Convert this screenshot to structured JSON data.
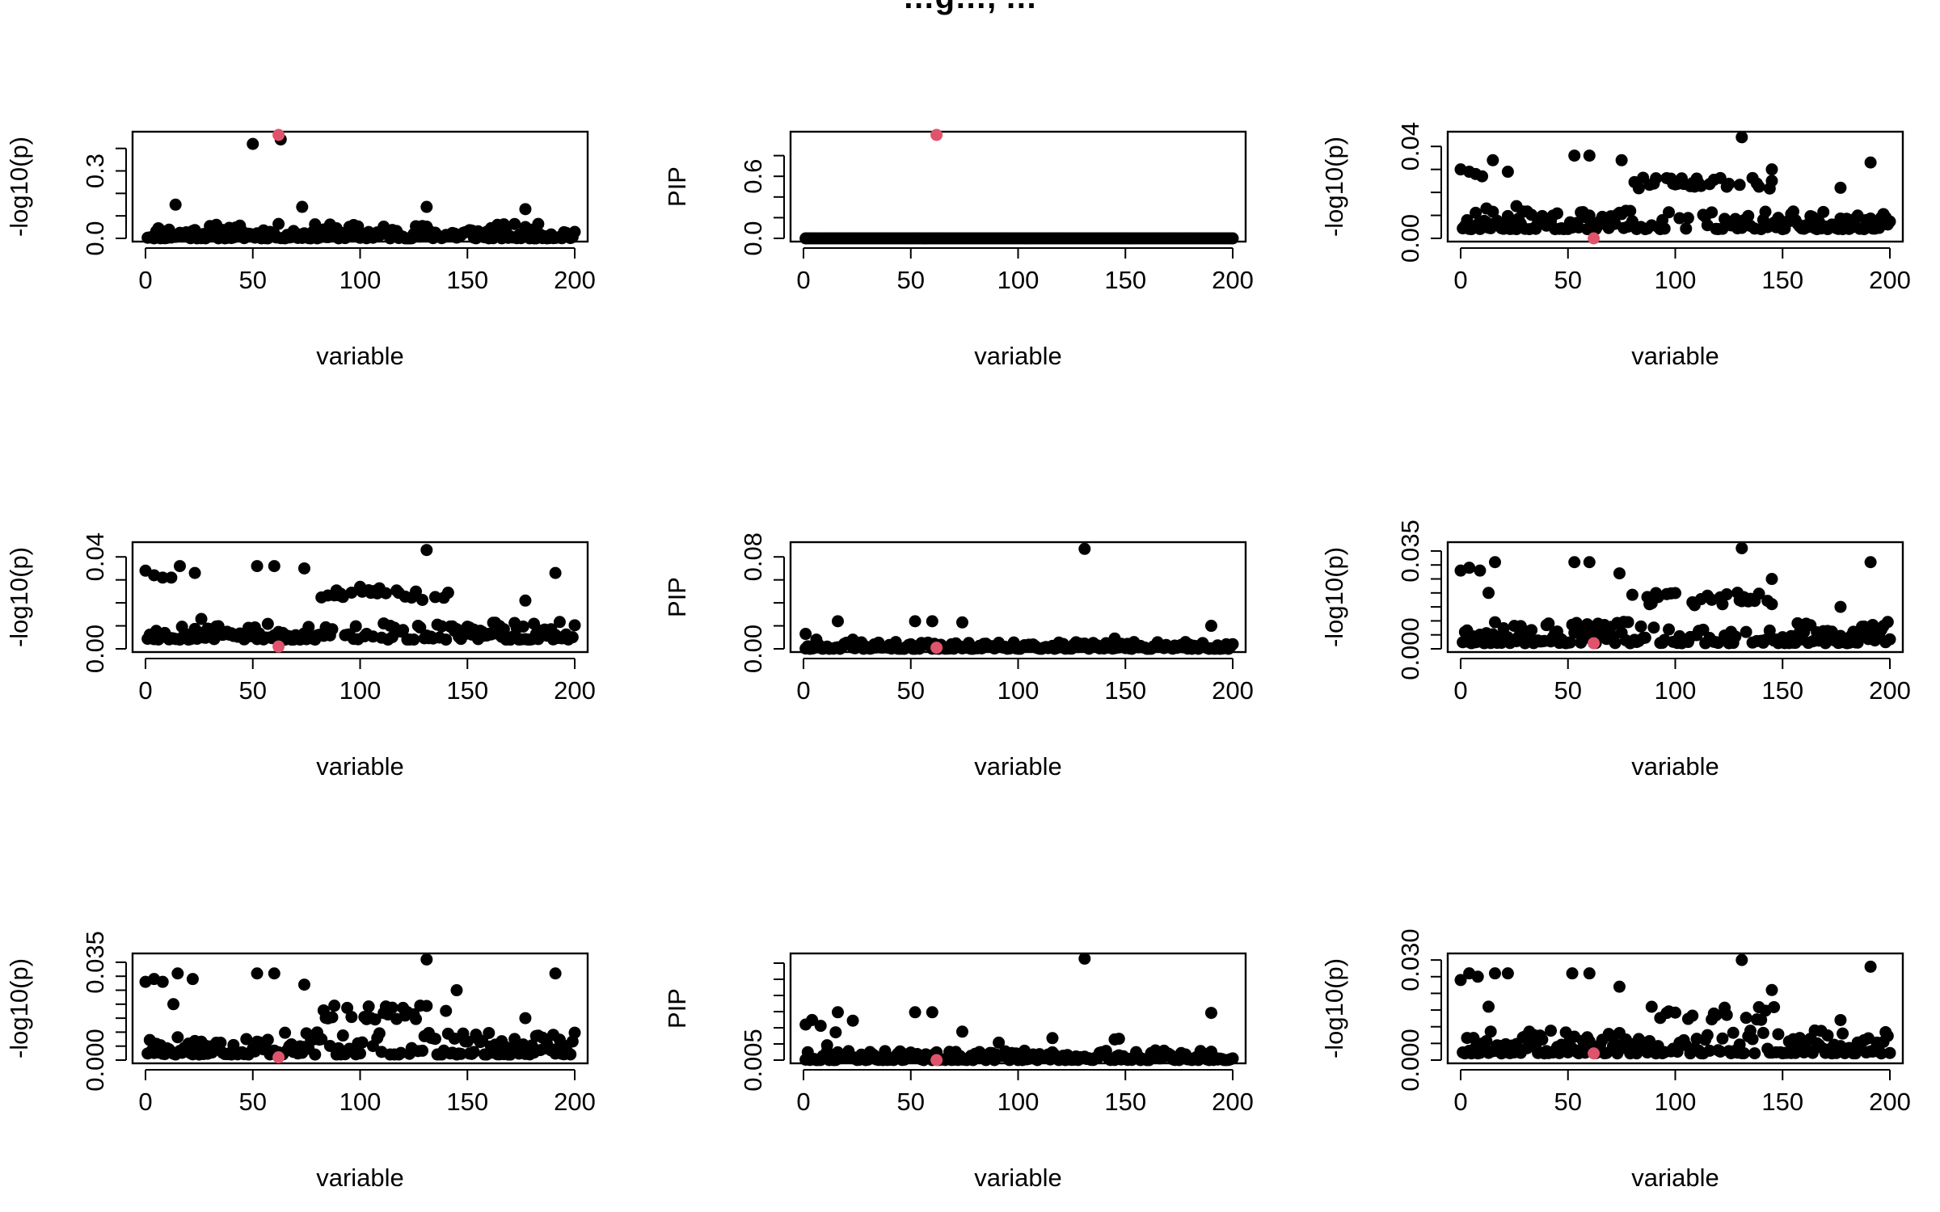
{
  "figure": {
    "title": "…g…, …"
  },
  "chart_data": [
    {
      "type": "scatter",
      "panel": 1,
      "xlabel": "variable",
      "ylabel": "-log10(p)",
      "xlim": [
        0,
        200
      ],
      "ylim": [
        0,
        0.46
      ],
      "xticks": [
        {
          "value": 0,
          "label": "0"
        },
        {
          "value": 50,
          "label": "50"
        },
        {
          "value": 100,
          "label": "100"
        },
        {
          "value": 150,
          "label": "150"
        },
        {
          "value": 200,
          "label": "200"
        }
      ],
      "yticks": [
        {
          "value": 0,
          "label": "0.0"
        },
        {
          "value": 0.1,
          "label": ""
        },
        {
          "value": 0.2,
          "label": ""
        },
        {
          "value": 0.3,
          "label": "0.3"
        },
        {
          "value": 0.4,
          "label": ""
        }
      ],
      "highlight": {
        "x": 62,
        "y": 0.46,
        "color": "#DF536B"
      },
      "points": [
        [
          50,
          0.42
        ],
        [
          63,
          0.44
        ],
        [
          73,
          0.14
        ],
        [
          14,
          0.15
        ],
        [
          131,
          0.14
        ],
        [
          177,
          0.13
        ]
      ],
      "noise": {
        "mode": "flat",
        "seed": 11,
        "base": 0.0,
        "amp": 0.065
      }
    },
    {
      "type": "scatter",
      "panel": 2,
      "xlabel": "variable",
      "ylabel": "PIP",
      "xlim": [
        0,
        200
      ],
      "ylim": [
        0,
        1.0
      ],
      "xticks": [
        {
          "value": 0,
          "label": "0"
        },
        {
          "value": 50,
          "label": "50"
        },
        {
          "value": 100,
          "label": "100"
        },
        {
          "value": 150,
          "label": "150"
        },
        {
          "value": 200,
          "label": "200"
        }
      ],
      "yticks": [
        {
          "value": 0,
          "label": "0.0"
        },
        {
          "value": 0.2,
          "label": ""
        },
        {
          "value": 0.4,
          "label": ""
        },
        {
          "value": 0.6,
          "label": "0.6"
        },
        {
          "value": 0.8,
          "label": ""
        }
      ],
      "highlight": {
        "x": 62,
        "y": 1.0,
        "color": "#DF536B"
      },
      "points": [],
      "noise": {
        "mode": "zero",
        "seed": 12,
        "base": 0.0,
        "amp": 0.0
      }
    },
    {
      "type": "scatter",
      "panel": 3,
      "xlabel": "variable",
      "ylabel": "-log10(p)",
      "xlim": [
        0,
        200
      ],
      "ylim": [
        0,
        0.045
      ],
      "xticks": [
        {
          "value": 0,
          "label": "0"
        },
        {
          "value": 50,
          "label": "50"
        },
        {
          "value": 100,
          "label": "100"
        },
        {
          "value": 150,
          "label": "150"
        },
        {
          "value": 200,
          "label": "200"
        }
      ],
      "yticks": [
        {
          "value": 0,
          "label": "0.00"
        },
        {
          "value": 0.01,
          "label": ""
        },
        {
          "value": 0.02,
          "label": ""
        },
        {
          "value": 0.03,
          "label": ""
        },
        {
          "value": 0.04,
          "label": "0.04"
        }
      ],
      "highlight": {
        "x": 62,
        "y": 0.0,
        "color": "#DF536B"
      },
      "points": [
        [
          0,
          0.03
        ],
        [
          4,
          0.029
        ],
        [
          7,
          0.028
        ],
        [
          10,
          0.027
        ],
        [
          15,
          0.034
        ],
        [
          22,
          0.029
        ],
        [
          53,
          0.036
        ],
        [
          60,
          0.036
        ],
        [
          75,
          0.034
        ],
        [
          131,
          0.044
        ],
        [
          145,
          0.03
        ],
        [
          191,
          0.033
        ],
        [
          177,
          0.022
        ],
        [
          12,
          0.013
        ],
        [
          26,
          0.014
        ]
      ],
      "noise": {
        "mode": "bands",
        "seed": 13,
        "base": 0.004,
        "amp": 0.008,
        "band": {
          "from": 80,
          "to": 145,
          "y": 0.024,
          "amp": 0.005
        }
      }
    },
    {
      "type": "scatter",
      "panel": 4,
      "xlabel": "variable",
      "ylabel": "-log10(p)",
      "xlim": [
        0,
        200
      ],
      "ylim": [
        0,
        0.045
      ],
      "xticks": [
        {
          "value": 0,
          "label": "0"
        },
        {
          "value": 50,
          "label": "50"
        },
        {
          "value": 100,
          "label": "100"
        },
        {
          "value": 150,
          "label": "150"
        },
        {
          "value": 200,
          "label": "200"
        }
      ],
      "yticks": [
        {
          "value": 0,
          "label": "0.00"
        },
        {
          "value": 0.01,
          "label": ""
        },
        {
          "value": 0.02,
          "label": ""
        },
        {
          "value": 0.03,
          "label": ""
        },
        {
          "value": 0.04,
          "label": "0.04"
        }
      ],
      "highlight": {
        "x": 62,
        "y": 0.001,
        "color": "#DF536B"
      },
      "points": [
        [
          0,
          0.034
        ],
        [
          4,
          0.032
        ],
        [
          8,
          0.031
        ],
        [
          12,
          0.031
        ],
        [
          16,
          0.036
        ],
        [
          23,
          0.033
        ],
        [
          52,
          0.036
        ],
        [
          60,
          0.036
        ],
        [
          74,
          0.035
        ],
        [
          131,
          0.043
        ],
        [
          191,
          0.033
        ],
        [
          177,
          0.021
        ],
        [
          26,
          0.013
        ]
      ],
      "noise": {
        "mode": "bands",
        "seed": 14,
        "base": 0.004,
        "amp": 0.008,
        "band": {
          "from": 82,
          "to": 146,
          "y": 0.024,
          "amp": 0.006
        }
      }
    },
    {
      "type": "scatter",
      "panel": 5,
      "xlabel": "variable",
      "ylabel": "PIP",
      "xlim": [
        0,
        200
      ],
      "ylim": [
        0,
        0.09
      ],
      "xticks": [
        {
          "value": 0,
          "label": "0"
        },
        {
          "value": 50,
          "label": "50"
        },
        {
          "value": 100,
          "label": "100"
        },
        {
          "value": 150,
          "label": "150"
        },
        {
          "value": 200,
          "label": "200"
        }
      ],
      "yticks": [
        {
          "value": 0,
          "label": "0.00"
        },
        {
          "value": 0.02,
          "label": ""
        },
        {
          "value": 0.04,
          "label": ""
        },
        {
          "value": 0.06,
          "label": ""
        },
        {
          "value": 0.08,
          "label": "0.08"
        }
      ],
      "highlight": {
        "x": 62,
        "y": 0.001,
        "color": "#DF536B"
      },
      "points": [
        [
          131,
          0.087
        ],
        [
          1,
          0.013
        ],
        [
          16,
          0.024
        ],
        [
          52,
          0.024
        ],
        [
          60,
          0.024
        ],
        [
          74,
          0.023
        ],
        [
          190,
          0.02
        ],
        [
          6,
          0.008
        ],
        [
          23,
          0.008
        ],
        [
          145,
          0.009
        ]
      ],
      "noise": {
        "mode": "flat",
        "seed": 15,
        "base": 0.0,
        "amp": 0.006
      }
    },
    {
      "type": "scatter",
      "panel": 6,
      "xlabel": "variable",
      "ylabel": "-log10(p)",
      "xlim": [
        0,
        200
      ],
      "ylim": [
        0,
        0.037
      ],
      "xticks": [
        {
          "value": 0,
          "label": "0"
        },
        {
          "value": 50,
          "label": "50"
        },
        {
          "value": 100,
          "label": "100"
        },
        {
          "value": 150,
          "label": "150"
        },
        {
          "value": 200,
          "label": "200"
        }
      ],
      "yticks": [
        {
          "value": 0,
          "label": "0.000"
        },
        {
          "value": 0.005,
          "label": ""
        },
        {
          "value": 0.01,
          "label": ""
        },
        {
          "value": 0.015,
          "label": ""
        },
        {
          "value": 0.02,
          "label": ""
        },
        {
          "value": 0.025,
          "label": ""
        },
        {
          "value": 0.03,
          "label": ""
        },
        {
          "value": 0.035,
          "label": "0.035"
        }
      ],
      "highlight": {
        "x": 62,
        "y": 0.002,
        "color": "#DF536B"
      },
      "points": [
        [
          0,
          0.028
        ],
        [
          4,
          0.029
        ],
        [
          9,
          0.028
        ],
        [
          16,
          0.031
        ],
        [
          13,
          0.02
        ],
        [
          53,
          0.031
        ],
        [
          60,
          0.031
        ],
        [
          74,
          0.027
        ],
        [
          131,
          0.036
        ],
        [
          145,
          0.025
        ],
        [
          191,
          0.031
        ],
        [
          177,
          0.015
        ]
      ],
      "noise": {
        "mode": "bands",
        "seed": 16,
        "base": 0.002,
        "amp": 0.008,
        "band": {
          "from": 80,
          "to": 145,
          "y": 0.018,
          "amp": 0.005
        }
      }
    },
    {
      "type": "scatter",
      "panel": 7,
      "xlabel": "variable",
      "ylabel": "-log10(p)",
      "xlim": [
        0,
        200
      ],
      "ylim": [
        0,
        0.037
      ],
      "xticks": [
        {
          "value": 0,
          "label": "0"
        },
        {
          "value": 50,
          "label": "50"
        },
        {
          "value": 100,
          "label": "100"
        },
        {
          "value": 150,
          "label": "150"
        },
        {
          "value": 200,
          "label": "200"
        }
      ],
      "yticks": [
        {
          "value": 0,
          "label": "0.000"
        },
        {
          "value": 0.005,
          "label": ""
        },
        {
          "value": 0.01,
          "label": ""
        },
        {
          "value": 0.015,
          "label": ""
        },
        {
          "value": 0.02,
          "label": ""
        },
        {
          "value": 0.025,
          "label": ""
        },
        {
          "value": 0.03,
          "label": ""
        },
        {
          "value": 0.035,
          "label": "0.035"
        }
      ],
      "highlight": {
        "x": 62,
        "y": 0.001,
        "color": "#DF536B"
      },
      "points": [
        [
          0,
          0.028
        ],
        [
          4,
          0.029
        ],
        [
          8,
          0.028
        ],
        [
          15,
          0.031
        ],
        [
          22,
          0.029
        ],
        [
          13,
          0.02
        ],
        [
          52,
          0.031
        ],
        [
          60,
          0.031
        ],
        [
          74,
          0.027
        ],
        [
          131,
          0.036
        ],
        [
          145,
          0.025
        ],
        [
          191,
          0.031
        ],
        [
          177,
          0.015
        ]
      ],
      "noise": {
        "mode": "bands",
        "seed": 17,
        "base": 0.002,
        "amp": 0.008,
        "band": {
          "from": 83,
          "to": 146,
          "y": 0.017,
          "amp": 0.005
        }
      }
    },
    {
      "type": "scatter",
      "panel": 8,
      "xlabel": "variable",
      "ylabel": "PIP",
      "xlim": [
        0,
        200
      ],
      "ylim": [
        0.005,
        0.021
      ],
      "xticks": [
        {
          "value": 0,
          "label": "0"
        },
        {
          "value": 50,
          "label": "50"
        },
        {
          "value": 100,
          "label": "100"
        },
        {
          "value": 150,
          "label": "150"
        },
        {
          "value": 200,
          "label": "200"
        }
      ],
      "yticks": [
        {
          "value": 0.005,
          "label": "0.005"
        },
        {
          "value": 0.0075,
          "label": ""
        },
        {
          "value": 0.01,
          "label": ""
        },
        {
          "value": 0.0125,
          "label": ""
        },
        {
          "value": 0.015,
          "label": ""
        },
        {
          "value": 0.0175,
          "label": ""
        },
        {
          "value": 0.02,
          "label": ""
        }
      ],
      "highlight": {
        "x": 62,
        "y": 0.005,
        "color": "#DF536B"
      },
      "points": [
        [
          131,
          0.0207
        ],
        [
          1,
          0.0105
        ],
        [
          4,
          0.0112
        ],
        [
          8,
          0.0103
        ],
        [
          15,
          0.0093
        ],
        [
          23,
          0.0111
        ],
        [
          16,
          0.0124
        ],
        [
          52,
          0.0124
        ],
        [
          60,
          0.0124
        ],
        [
          74,
          0.0094
        ],
        [
          190,
          0.0123
        ],
        [
          91,
          0.0077
        ],
        [
          116,
          0.0084
        ],
        [
          145,
          0.0082
        ],
        [
          147,
          0.0083
        ],
        [
          11,
          0.0073
        ]
      ],
      "noise": {
        "mode": "flat",
        "seed": 18,
        "base": 0.005,
        "amp": 0.0015
      }
    },
    {
      "type": "scatter",
      "panel": 9,
      "xlabel": "variable",
      "ylabel": "-log10(p)",
      "xlim": [
        0,
        200
      ],
      "ylim": [
        0,
        0.031
      ],
      "xticks": [
        {
          "value": 0,
          "label": "0"
        },
        {
          "value": 50,
          "label": "50"
        },
        {
          "value": 100,
          "label": "100"
        },
        {
          "value": 150,
          "label": "150"
        },
        {
          "value": 200,
          "label": "200"
        }
      ],
      "yticks": [
        {
          "value": 0,
          "label": "0.000"
        },
        {
          "value": 0.005,
          "label": ""
        },
        {
          "value": 0.01,
          "label": ""
        },
        {
          "value": 0.015,
          "label": ""
        },
        {
          "value": 0.02,
          "label": ""
        },
        {
          "value": 0.025,
          "label": ""
        },
        {
          "value": 0.03,
          "label": "0.030"
        }
      ],
      "highlight": {
        "x": 62,
        "y": 0.002,
        "color": "#DF536B"
      },
      "points": [
        [
          0,
          0.024
        ],
        [
          4,
          0.026
        ],
        [
          8,
          0.025
        ],
        [
          16,
          0.026
        ],
        [
          22,
          0.026
        ],
        [
          13,
          0.016
        ],
        [
          52,
          0.026
        ],
        [
          60,
          0.026
        ],
        [
          74,
          0.022
        ],
        [
          131,
          0.03
        ],
        [
          145,
          0.021
        ],
        [
          191,
          0.028
        ],
        [
          177,
          0.012
        ]
      ],
      "noise": {
        "mode": "bands",
        "seed": 19,
        "base": 0.002,
        "amp": 0.007,
        "band": {
          "from": 83,
          "to": 146,
          "y": 0.014,
          "amp": 0.004
        }
      }
    }
  ]
}
